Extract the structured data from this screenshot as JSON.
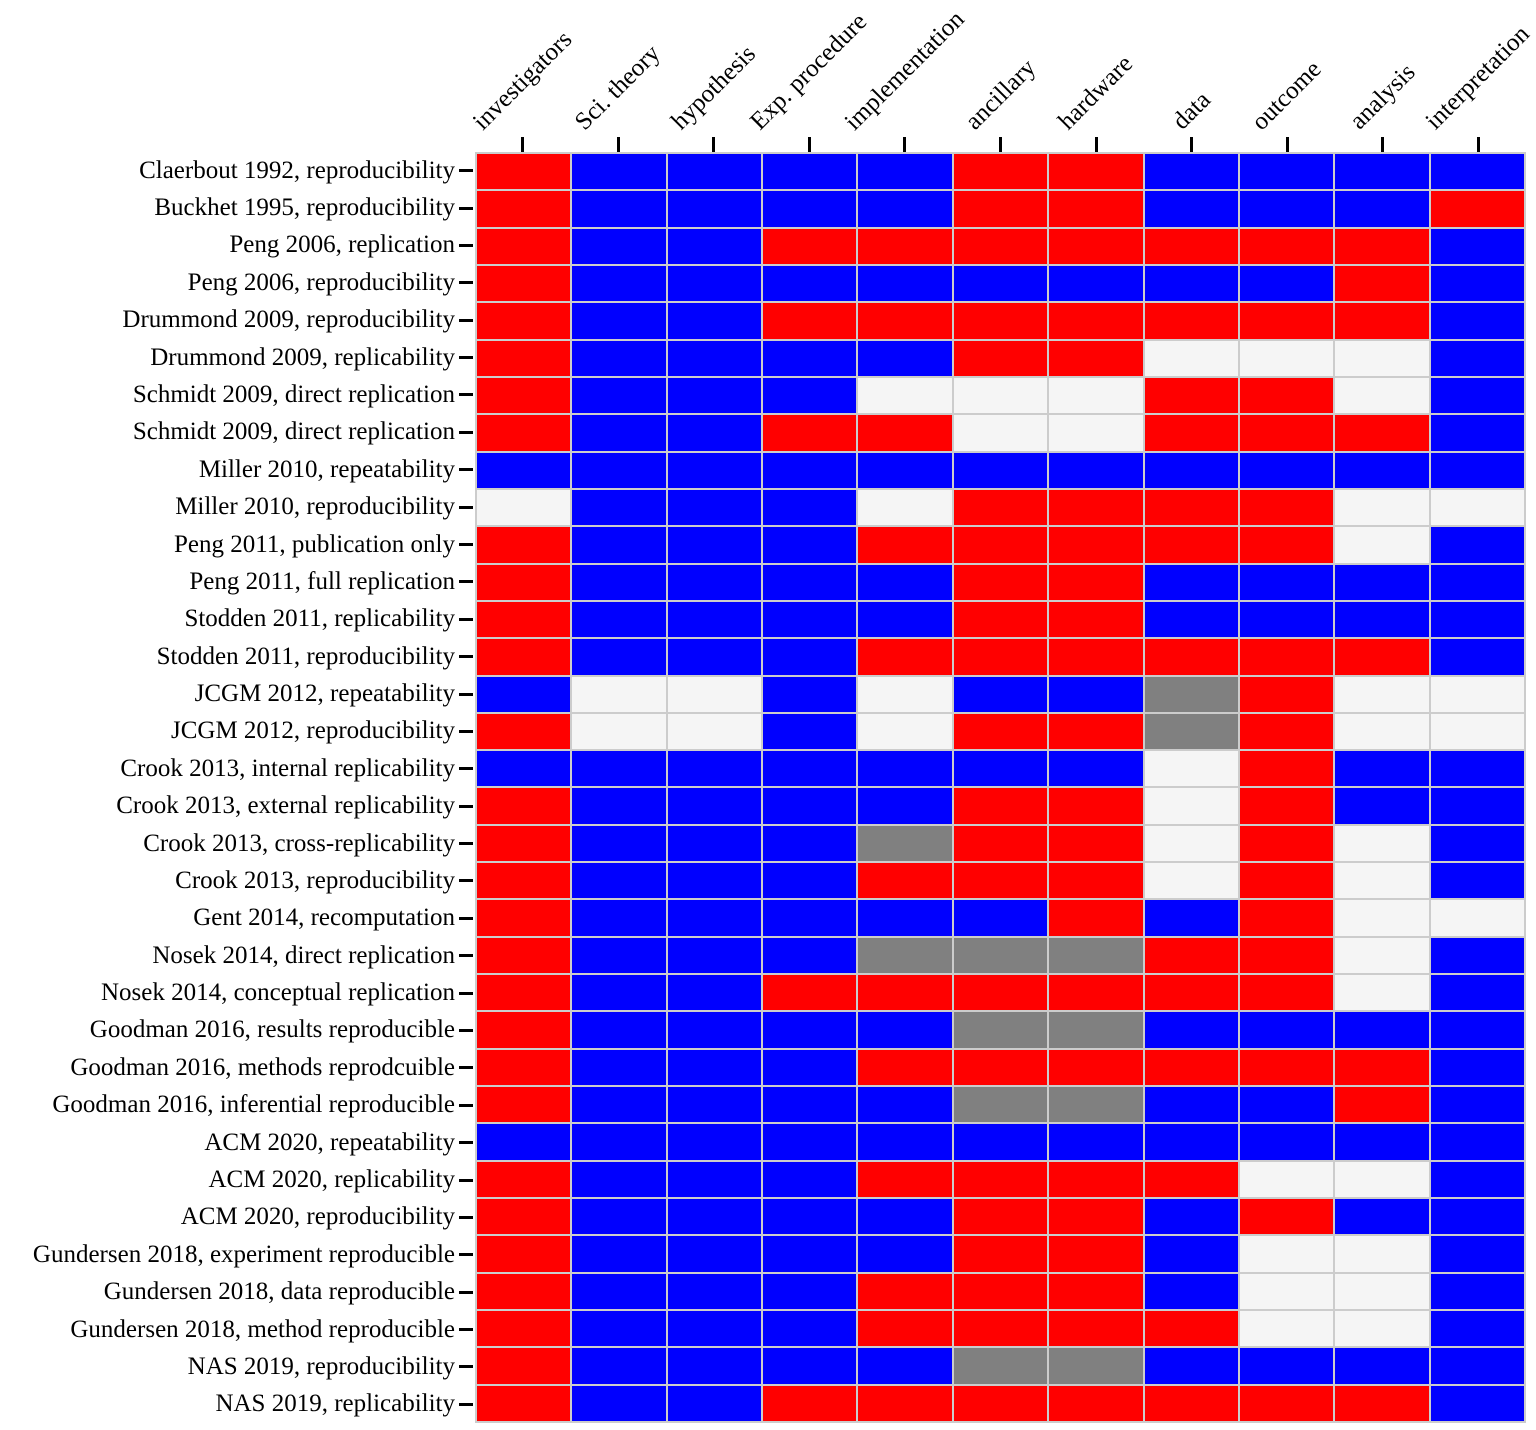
{
  "figure": {
    "background": "#ffffff",
    "text_color": "#000000"
  },
  "chart_data": {
    "type": "heatmap",
    "title": "",
    "xlabel": "",
    "ylabel": "",
    "x_axis_position": "top",
    "x_tick_label_rotation_deg": 45,
    "grid_line_color": "#cccccc",
    "tick_color": "#000000",
    "cell_colors": {
      "R": "#ff0000",
      "B": "#0000ff",
      "W": "#f5f5f5",
      "G": "#808080"
    },
    "cell_color_names": {
      "R": "red",
      "B": "blue",
      "W": "whitesmoke",
      "G": "gray"
    },
    "columns": [
      "investigators",
      "Sci. theory",
      "hypothesis",
      "Exp. procedure",
      "implementation",
      "ancillary",
      "hardware",
      "data",
      "outcome",
      "analysis",
      "interpretation"
    ],
    "rows": [
      {
        "label": "Claerbout 1992, reproducibility",
        "cells": "RBBBBRRBBBB"
      },
      {
        "label": "Buckhet 1995, reproducibility",
        "cells": "RBBBBRRBBBR"
      },
      {
        "label": "Peng 2006, replication",
        "cells": "RBBRRRRRRRB"
      },
      {
        "label": "Peng 2006, reproducibility",
        "cells": "RBBBBBBBBRB"
      },
      {
        "label": "Drummond 2009, reproducibility",
        "cells": "RBBRRRRRRRB"
      },
      {
        "label": "Drummond 2009, replicability",
        "cells": "RBBBBRRWWWB"
      },
      {
        "label": "Schmidt 2009, direct replication",
        "cells": "RBBBWWWRRWB"
      },
      {
        "label": "Schmidt 2009, direct replication",
        "cells": "RBBRRWWRRRB"
      },
      {
        "label": "Miller 2010, repeatability",
        "cells": "BBBBBBBBBBB"
      },
      {
        "label": "Miller 2010, reproducibility",
        "cells": "WBBBWRRRRWW"
      },
      {
        "label": "Peng 2011, publication only",
        "cells": "RBBBRRRRRWB"
      },
      {
        "label": "Peng 2011, full replication",
        "cells": "RBBBBRRBBBB"
      },
      {
        "label": "Stodden 2011, replicability",
        "cells": "RBBBBRRBBBB"
      },
      {
        "label": "Stodden 2011, reproducibility",
        "cells": "RBBBRRRRRRB"
      },
      {
        "label": "JCGM 2012, repeatability",
        "cells": "BWWBWBBGRWW"
      },
      {
        "label": "JCGM 2012, reproducibility",
        "cells": "RWWBWRRGRWW"
      },
      {
        "label": "Crook 2013, internal replicability",
        "cells": "BBBBBBBWRBB"
      },
      {
        "label": "Crook 2013, external replicability",
        "cells": "RBBBBRRWRBB"
      },
      {
        "label": "Crook 2013, cross-replicability",
        "cells": "RBBBGRRWRWB"
      },
      {
        "label": "Crook 2013, reproducibility",
        "cells": "RBBBRRRWRWB"
      },
      {
        "label": "Gent 2014, recomputation",
        "cells": "RBBBBBRBRWW"
      },
      {
        "label": "Nosek 2014, direct replication",
        "cells": "RBBBGGGRRWB"
      },
      {
        "label": "Nosek 2014, conceptual replication",
        "cells": "RBBRRRRRRWB"
      },
      {
        "label": "Goodman 2016, results reproducible",
        "cells": "RBBBBGGBBBB"
      },
      {
        "label": "Goodman 2016, methods reprodcuible",
        "cells": "RBBBRRRRRRB"
      },
      {
        "label": "Goodman 2016, inferential reproducible",
        "cells": "RBBBBGGBBRB"
      },
      {
        "label": "ACM 2020, repeatability",
        "cells": "BBBBBBBBBBB"
      },
      {
        "label": "ACM 2020, replicability",
        "cells": "RBBBRRRRWWB"
      },
      {
        "label": "ACM 2020, reproducibility",
        "cells": "RBBBBRRBRBB"
      },
      {
        "label": "Gundersen 2018, experiment reproducible",
        "cells": "RBBBBRRBWWB"
      },
      {
        "label": "Gundersen 2018, data reproducible",
        "cells": "RBBBRRRBWWB"
      },
      {
        "label": "Gundersen 2018, method reproducible",
        "cells": "RBBBRRRRWWB"
      },
      {
        "label": "NAS 2019, reproducibility",
        "cells": "RBBBBGGBBBB"
      },
      {
        "label": "NAS 2019, replicability",
        "cells": "RBBRRRRRRRB"
      }
    ]
  }
}
